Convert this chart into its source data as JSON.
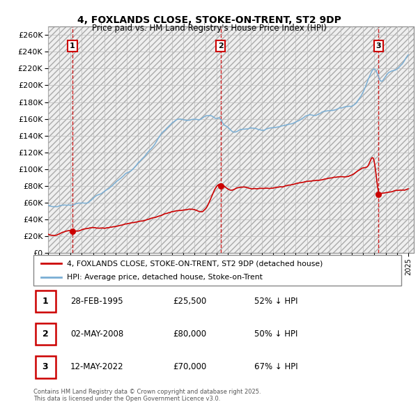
{
  "title": "4, FOXLANDS CLOSE, STOKE-ON-TRENT, ST2 9DP",
  "subtitle": "Price paid vs. HM Land Registry's House Price Index (HPI)",
  "ylim": [
    0,
    270000
  ],
  "yticks": [
    0,
    20000,
    40000,
    60000,
    80000,
    100000,
    120000,
    140000,
    160000,
    180000,
    200000,
    220000,
    240000,
    260000
  ],
  "xlim_start": 1993.0,
  "xlim_end": 2025.5,
  "sale_dates": [
    1995.163,
    2008.335,
    2022.368
  ],
  "sale_prices": [
    25500,
    80000,
    70000
  ],
  "sale_labels": [
    "1",
    "2",
    "3"
  ],
  "sale_date_strs": [
    "28-FEB-1995",
    "02-MAY-2008",
    "12-MAY-2022"
  ],
  "sale_price_strs": [
    "£25,500",
    "£80,000",
    "£70,000"
  ],
  "sale_hpi_strs": [
    "52% ↓ HPI",
    "50% ↓ HPI",
    "67% ↓ HPI"
  ],
  "hpi_color": "#7aaed4",
  "price_color": "#cc0000",
  "vline_color": "#cc0000",
  "legend_label_price": "4, FOXLANDS CLOSE, STOKE-ON-TRENT, ST2 9DP (detached house)",
  "legend_label_hpi": "HPI: Average price, detached house, Stoke-on-Trent",
  "footer": "Contains HM Land Registry data © Crown copyright and database right 2025.\nThis data is licensed under the Open Government Licence v3.0.",
  "grid_color": "#bbbbbb",
  "hpi_data_x": [
    1993.0,
    1993.5,
    1994.0,
    1994.5,
    1995.0,
    1995.5,
    1996.0,
    1996.5,
    1997.0,
    1997.5,
    1998.0,
    1998.5,
    1999.0,
    1999.5,
    2000.0,
    2000.5,
    2001.0,
    2001.5,
    2002.0,
    2002.5,
    2003.0,
    2003.5,
    2004.0,
    2004.5,
    2005.0,
    2005.5,
    2006.0,
    2006.5,
    2007.0,
    2007.5,
    2008.0,
    2008.335,
    2008.5,
    2009.0,
    2009.5,
    2010.0,
    2010.5,
    2011.0,
    2011.5,
    2012.0,
    2012.5,
    2013.0,
    2013.5,
    2014.0,
    2014.5,
    2015.0,
    2015.5,
    2016.0,
    2016.5,
    2017.0,
    2017.5,
    2018.0,
    2018.5,
    2019.0,
    2019.5,
    2020.0,
    2020.5,
    2021.0,
    2021.5,
    2022.0,
    2022.368,
    2022.5,
    2023.0,
    2023.5,
    2024.0,
    2024.5,
    2025.0
  ],
  "hpi_data_y": [
    55000,
    55500,
    56000,
    57000,
    58000,
    59000,
    61000,
    63000,
    67000,
    71000,
    76000,
    80000,
    85000,
    91000,
    97000,
    103000,
    109000,
    116000,
    124000,
    133000,
    142000,
    150000,
    157000,
    160000,
    161000,
    161500,
    162000,
    163000,
    165000,
    166000,
    164000,
    162000,
    160000,
    152000,
    148000,
    149000,
    150000,
    149000,
    148000,
    147000,
    147500,
    148000,
    149000,
    151000,
    153000,
    155000,
    157000,
    159000,
    161000,
    163000,
    165000,
    167000,
    169000,
    171000,
    173000,
    174000,
    181000,
    191000,
    208000,
    218000,
    210000,
    207000,
    210000,
    215000,
    220000,
    228000,
    238000
  ],
  "price_data_x": [
    1993.0,
    1994.0,
    1995.0,
    1995.163,
    1996.0,
    1997.0,
    1998.0,
    1999.0,
    2000.0,
    2001.0,
    2002.0,
    2003.0,
    2004.0,
    2005.0,
    2006.0,
    2007.0,
    2008.0,
    2008.335,
    2009.0,
    2010.0,
    2011.0,
    2012.0,
    2013.0,
    2014.0,
    2015.0,
    2016.0,
    2017.0,
    2018.0,
    2019.0,
    2020.0,
    2021.0,
    2021.5,
    2022.0,
    2022.368,
    2022.5,
    2023.0,
    2023.5,
    2024.0,
    2024.5,
    2025.0
  ],
  "price_data_y": [
    22000,
    23000,
    24500,
    25500,
    26800,
    28500,
    30500,
    32500,
    35000,
    37500,
    40500,
    44000,
    48000,
    49500,
    50500,
    51500,
    78000,
    80000,
    76000,
    77000,
    76500,
    76000,
    76500,
    78000,
    80000,
    82000,
    84000,
    86000,
    88000,
    90000,
    98000,
    103000,
    105000,
    70000,
    68000,
    69000,
    70000,
    71000,
    72000,
    73000
  ]
}
